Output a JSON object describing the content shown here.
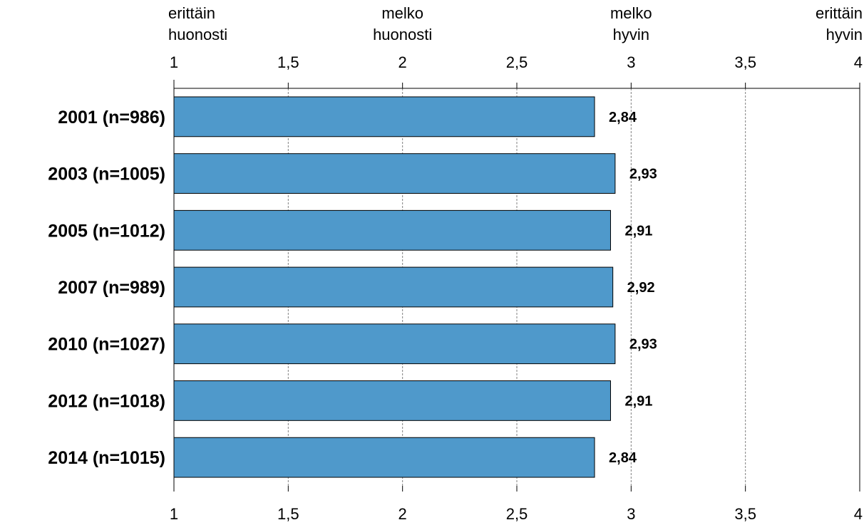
{
  "chart_data": {
    "type": "bar",
    "orientation": "horizontal",
    "title": "",
    "xlabel": "",
    "ylabel": "",
    "categories": [
      "2001 (n=986)",
      "2003 (n=1005)",
      "2005 (n=1012)",
      "2007 (n=989)",
      "2010 (n=1027)",
      "2012 (n=1018)",
      "2014 (n=1015)"
    ],
    "values": [
      2.84,
      2.93,
      2.91,
      2.92,
      2.93,
      2.91,
      2.84
    ],
    "value_labels": [
      "2,84",
      "2,93",
      "2,91",
      "2,92",
      "2,93",
      "2,91",
      "2,84"
    ],
    "xlim": [
      1,
      4
    ],
    "ticks": [
      1,
      1.5,
      2,
      2.5,
      3,
      3.5,
      4
    ],
    "tick_labels": [
      "1",
      "1,5",
      "2",
      "2,5",
      "3",
      "3,5",
      "4"
    ],
    "scale_labels": [
      {
        "value": 1,
        "lines": [
          "erittäin",
          "huonosti"
        ]
      },
      {
        "value": 2,
        "lines": [
          "melko",
          "huonosti"
        ]
      },
      {
        "value": 3,
        "lines": [
          "melko",
          "hyvin"
        ]
      },
      {
        "value": 4,
        "lines": [
          "erittäin",
          "hyvin"
        ]
      }
    ],
    "grid": true,
    "legend": "none",
    "colors": {
      "bar": "#4f99cb",
      "bar_stroke": "#000000",
      "grid": "#808080"
    }
  }
}
